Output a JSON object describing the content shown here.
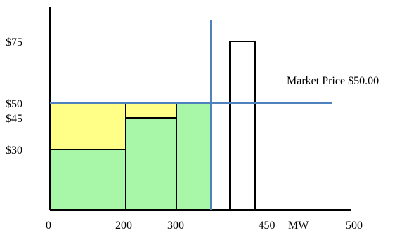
{
  "chart_data": {
    "type": "bar",
    "x_ticks": [
      {
        "value": 0,
        "label": "0"
      },
      {
        "value": 200,
        "label": "200"
      },
      {
        "value": 300,
        "label": "300"
      },
      {
        "value": 450,
        "label": "450"
      },
      {
        "value": 500,
        "label": "500"
      }
    ],
    "x_unit": "MW",
    "y_ticks": [
      {
        "value": 75,
        "label": "$75"
      },
      {
        "value": 50,
        "label": "$50"
      },
      {
        "value": 45,
        "label": "$45"
      },
      {
        "value": 30,
        "label": "$30"
      }
    ],
    "market_price": {
      "value": 50,
      "label": "Market Price $50.00"
    },
    "supply_blocks": [
      {
        "x0": 0,
        "x1": 200,
        "bid": 30,
        "status": "accepted"
      },
      {
        "x0": 200,
        "x1": 300,
        "bid": 45,
        "status": "accepted"
      },
      {
        "x0": 300,
        "x1": 360,
        "bid": 50,
        "status": "accepted"
      },
      {
        "x0": 395,
        "x1": 445,
        "bid": 75,
        "status": "rejected"
      }
    ],
    "cleared_quantity": 360,
    "colors": {
      "cost_fill": "#a8f7a8",
      "surplus_fill": "#ffff88",
      "price_line": "#4f81bd",
      "outline": "#000000"
    }
  }
}
